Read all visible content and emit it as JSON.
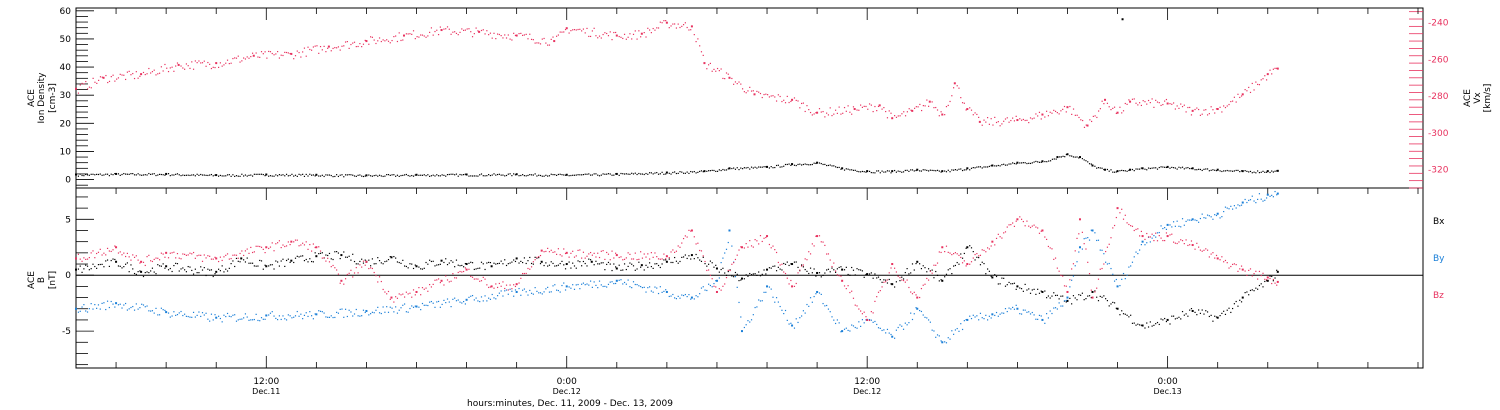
{
  "colors": {
    "black": "#000000",
    "pink": "#e8325f",
    "blue": "#1a7fd8"
  },
  "x_axis": {
    "title": "hours:minutes, Dec. 11, 2009 - Dec. 13, 2009",
    "ticks": [
      {
        "t": 12,
        "time": "12:00",
        "date": "Dec.11"
      },
      {
        "t": 24,
        "time": "0:00",
        "date": "Dec.12"
      },
      {
        "t": 36,
        "time": "12:00",
        "date": "Dec.12"
      },
      {
        "t": 48,
        "time": "0:00",
        "date": "Dec.13"
      }
    ]
  },
  "chart_data": [
    {
      "type": "scatter",
      "panel": "top",
      "x_range_hours": [
        4.4,
        58.2
      ],
      "left_axis": {
        "label_lines": [
          "ACE",
          "Ion Density",
          "[cm-3]"
        ],
        "ylim": [
          -3,
          61
        ],
        "ticks": [
          0,
          10,
          20,
          30,
          40,
          50,
          60
        ],
        "color": "#000000"
      },
      "right_axis": {
        "label_lines": [
          "ACE",
          "Vx",
          "[km/s]"
        ],
        "ylim": [
          -330,
          -232
        ],
        "ticks": [
          -240,
          -260,
          -280,
          -300,
          -320
        ],
        "color": "#e8325f"
      },
      "series": [
        {
          "axis": "left",
          "color": "#000000",
          "points": [
            [
              4.4,
              1.8
            ],
            [
              6,
              2
            ],
            [
              8,
              2
            ],
            [
              10,
              1.6
            ],
            [
              12,
              1.8
            ],
            [
              14,
              1.7
            ],
            [
              16,
              1.5
            ],
            [
              18,
              1.7
            ],
            [
              20,
              1.8
            ],
            [
              22,
              1.9
            ],
            [
              24,
              1.7
            ],
            [
              26,
              2
            ],
            [
              28,
              2.5
            ],
            [
              29.5,
              3
            ],
            [
              30.5,
              4
            ],
            [
              32,
              4.5
            ],
            [
              33,
              5.5
            ],
            [
              34,
              6
            ],
            [
              35,
              4
            ],
            [
              36,
              3
            ],
            [
              37,
              3
            ],
            [
              38,
              3.5
            ],
            [
              39,
              3
            ],
            [
              40,
              4
            ],
            [
              41,
              5
            ],
            [
              42,
              6
            ],
            [
              43,
              6.5
            ],
            [
              43.6,
              8
            ],
            [
              44,
              9
            ],
            [
              44.5,
              8
            ],
            [
              45,
              5
            ],
            [
              45.5,
              3.5
            ],
            [
              46,
              3
            ],
            [
              46.5,
              3.5
            ],
            [
              47,
              4
            ],
            [
              48,
              4.5
            ],
            [
              49,
              4
            ],
            [
              50,
              3.5
            ],
            [
              51,
              3
            ],
            [
              52,
              3
            ],
            [
              52.4,
              3.1
            ]
          ]
        },
        {
          "axis": "right",
          "color": "#e8325f",
          "points": [
            [
              4.4,
              -276
            ],
            [
              5.5,
              -270
            ],
            [
              7,
              -268
            ],
            [
              8.5,
              -263
            ],
            [
              10,
              -262
            ],
            [
              11.5,
              -258
            ],
            [
              13,
              -257
            ],
            [
              14.5,
              -253
            ],
            [
              16,
              -250
            ],
            [
              17.5,
              -247
            ],
            [
              19,
              -244
            ],
            [
              20.5,
              -245
            ],
            [
              22,
              -247
            ],
            [
              23.5,
              -250
            ],
            [
              24,
              -243
            ],
            [
              26,
              -247
            ],
            [
              27,
              -246
            ],
            [
              28,
              -240
            ],
            [
              29,
              -242
            ],
            [
              29.5,
              -262
            ],
            [
              30.5,
              -270
            ],
            [
              31.5,
              -279
            ],
            [
              33,
              -282
            ],
            [
              34,
              -289
            ],
            [
              35.5,
              -287
            ],
            [
              36.5,
              -285
            ],
            [
              37,
              -292
            ],
            [
              37.8,
              -288
            ],
            [
              38.5,
              -283
            ],
            [
              39,
              -290
            ],
            [
              39.5,
              -273
            ],
            [
              40,
              -287
            ],
            [
              40.5,
              -294
            ],
            [
              42,
              -293
            ],
            [
              43,
              -290
            ],
            [
              44,
              -286
            ],
            [
              44.8,
              -296
            ],
            [
              45.5,
              -282
            ],
            [
              46,
              -289
            ],
            [
              46.5,
              -283
            ],
            [
              48,
              -284
            ],
            [
              49,
              -288
            ],
            [
              50,
              -287
            ],
            [
              51,
              -279
            ],
            [
              52,
              -268
            ],
            [
              52.4,
              -265
            ]
          ]
        },
        {
          "axis": "left",
          "color": "#000000",
          "points": [
            [
              46.2,
              57
            ]
          ]
        }
      ]
    },
    {
      "type": "scatter",
      "panel": "bottom",
      "x_range_hours": [
        4.4,
        58.2
      ],
      "left_axis": {
        "label_lines": [
          "ACE",
          "B",
          "[nT]"
        ],
        "ylim": [
          -8.3,
          7.8
        ],
        "ticks": [
          -5,
          0,
          5
        ],
        "color": "#000000"
      },
      "legend": {
        "placement": "right",
        "entries": [
          {
            "name": "Bx",
            "color": "#000000"
          },
          {
            "name": "By",
            "color": "#1a7fd8"
          },
          {
            "name": "Bz",
            "color": "#e8325f"
          }
        ]
      },
      "series": [
        {
          "name": "Bx",
          "color": "#000000",
          "points": [
            [
              4.4,
              0.5
            ],
            [
              6,
              1.2
            ],
            [
              7,
              0.3
            ],
            [
              8,
              0.8
            ],
            [
              10,
              0.3
            ],
            [
              11,
              1.5
            ],
            [
              12,
              0.8
            ],
            [
              13,
              1.3
            ],
            [
              14,
              1.7
            ],
            [
              15,
              1.8
            ],
            [
              16,
              1.2
            ],
            [
              17,
              1.6
            ],
            [
              18,
              0.8
            ],
            [
              19,
              1.3
            ],
            [
              20,
              1
            ],
            [
              21,
              0.8
            ],
            [
              22,
              1.5
            ],
            [
              23,
              1.2
            ],
            [
              24,
              1
            ],
            [
              25,
              1.2
            ],
            [
              26,
              0.6
            ],
            [
              27,
              0.9
            ],
            [
              28,
              1.2
            ],
            [
              29,
              1.8
            ],
            [
              30,
              0.6
            ],
            [
              31,
              -0.3
            ],
            [
              32,
              0.5
            ],
            [
              33,
              1
            ],
            [
              34,
              0.2
            ],
            [
              35,
              0.5
            ],
            [
              36,
              0.1
            ],
            [
              37,
              -0.8
            ],
            [
              38,
              1.2
            ],
            [
              39,
              -0.5
            ],
            [
              40,
              2.5
            ],
            [
              41,
              -0.2
            ],
            [
              42,
              -1
            ],
            [
              43,
              -1.5
            ],
            [
              44,
              -2.3
            ],
            [
              45,
              -1.5
            ],
            [
              46,
              -3
            ],
            [
              47,
              -4.5
            ],
            [
              48,
              -4
            ],
            [
              49,
              -3.2
            ],
            [
              50,
              -3.8
            ],
            [
              51,
              -2
            ],
            [
              52,
              -0.5
            ],
            [
              52.4,
              0.3
            ]
          ]
        },
        {
          "name": "By",
          "color": "#1a7fd8",
          "points": [
            [
              4.4,
              -3
            ],
            [
              6,
              -2.5
            ],
            [
              8,
              -3.3
            ],
            [
              10,
              -3.8
            ],
            [
              12,
              -3.6
            ],
            [
              14,
              -3.5
            ],
            [
              16,
              -3.2
            ],
            [
              18,
              -2.8
            ],
            [
              20,
              -2.2
            ],
            [
              22,
              -1.5
            ],
            [
              24,
              -1
            ],
            [
              26,
              -0.5
            ],
            [
              28,
              -1.5
            ],
            [
              29,
              -2
            ],
            [
              30,
              -0.5
            ],
            [
              30.5,
              4
            ],
            [
              31,
              -5
            ],
            [
              32,
              -1
            ],
            [
              33,
              -4.5
            ],
            [
              34,
              -1.5
            ],
            [
              35,
              -5
            ],
            [
              36,
              -4
            ],
            [
              37,
              -5.5
            ],
            [
              38,
              -3
            ],
            [
              39,
              -6
            ],
            [
              40,
              -4
            ],
            [
              41,
              -3.5
            ],
            [
              42,
              -3
            ],
            [
              43,
              -4
            ],
            [
              44,
              -2
            ],
            [
              44.5,
              2.5
            ],
            [
              45,
              4
            ],
            [
              46,
              -1
            ],
            [
              47,
              3
            ],
            [
              48,
              4.5
            ],
            [
              49,
              5
            ],
            [
              50,
              5.5
            ],
            [
              51,
              6.5
            ],
            [
              52,
              7.2
            ],
            [
              52.4,
              7.3
            ]
          ]
        },
        {
          "name": "Bz",
          "color": "#e8325f",
          "points": [
            [
              4.4,
              1.5
            ],
            [
              6,
              2.5
            ],
            [
              7,
              1.2
            ],
            [
              8,
              2
            ],
            [
              10,
              1.5
            ],
            [
              12,
              2.5
            ],
            [
              13,
              3
            ],
            [
              14,
              2.5
            ],
            [
              15,
              -0.5
            ],
            [
              16,
              1.2
            ],
            [
              17,
              -2
            ],
            [
              18,
              -1.5
            ],
            [
              19,
              -0.5
            ],
            [
              20,
              0.5
            ],
            [
              21,
              -1
            ],
            [
              22,
              -0.8
            ],
            [
              23,
              2.2
            ],
            [
              24,
              2
            ],
            [
              26,
              1.8
            ],
            [
              28,
              1.7
            ],
            [
              29,
              4
            ],
            [
              30,
              -1.5
            ],
            [
              31,
              2.5
            ],
            [
              32,
              3.5
            ],
            [
              33,
              -1
            ],
            [
              34,
              3.5
            ],
            [
              35,
              -0.5
            ],
            [
              36,
              -4
            ],
            [
              37,
              1
            ],
            [
              38,
              -2
            ],
            [
              39,
              2.5
            ],
            [
              40,
              1
            ],
            [
              41,
              3
            ],
            [
              42,
              5
            ],
            [
              43,
              4
            ],
            [
              44,
              -1.5
            ],
            [
              44.5,
              5
            ],
            [
              45,
              -2
            ],
            [
              46,
              6
            ],
            [
              47,
              3.5
            ],
            [
              48,
              3.5
            ],
            [
              49,
              2.7
            ],
            [
              50,
              1.5
            ],
            [
              51,
              0.5
            ],
            [
              52,
              -0.2
            ],
            [
              52.4,
              -0.6
            ]
          ]
        }
      ]
    }
  ]
}
